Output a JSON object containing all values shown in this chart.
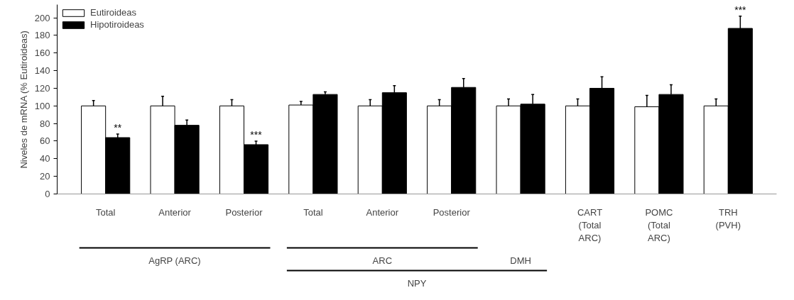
{
  "chart_data": {
    "type": "bar",
    "ylabel": "Niveles de mRNA (% Eutiroideas)",
    "categories": [
      "Total",
      "Anterior",
      "Posterior",
      "Total",
      "Anterior",
      "Posterior",
      null,
      "CART\n(Total\nARC)",
      "POMC\n(Total\nARC)",
      "TRH\n(PVH)"
    ],
    "series": [
      {
        "name": "Eutiroideas",
        "color": "#ffffff",
        "values": [
          100,
          100,
          100,
          101,
          100,
          100,
          100,
          100,
          99,
          100
        ],
        "errors": [
          [
            100,
            106
          ],
          [
            100,
            111
          ],
          [
            100,
            107
          ],
          [
            101,
            105
          ],
          [
            100,
            107
          ],
          [
            100,
            107
          ],
          [
            100,
            108
          ],
          [
            100,
            108
          ],
          [
            99,
            112
          ],
          [
            100,
            108
          ]
        ]
      },
      {
        "name": "Hipotiroideas",
        "color": "#000000",
        "values": [
          64,
          78,
          56,
          113,
          115,
          121,
          102,
          120,
          113,
          188
        ],
        "errors": [
          [
            64,
            68
          ],
          [
            78,
            84
          ],
          [
            56,
            60
          ],
          [
            113,
            116
          ],
          [
            115,
            123
          ],
          [
            121,
            131
          ],
          [
            102,
            113
          ],
          [
            120,
            133
          ],
          [
            113,
            124
          ],
          [
            188,
            202
          ]
        ],
        "value_labels": [
          "**",
          null,
          "***",
          null,
          null,
          null,
          null,
          null,
          null,
          "***"
        ]
      }
    ],
    "annotations": [
      "AgRP (ARC)",
      "ARC",
      "DMH",
      "NPY"
    ],
    "ylim": [
      0,
      215
    ],
    "yticks": [
      0,
      20,
      40,
      60,
      80,
      100,
      120,
      140,
      160,
      180,
      200
    ],
    "grid": false,
    "legend": "top left"
  }
}
